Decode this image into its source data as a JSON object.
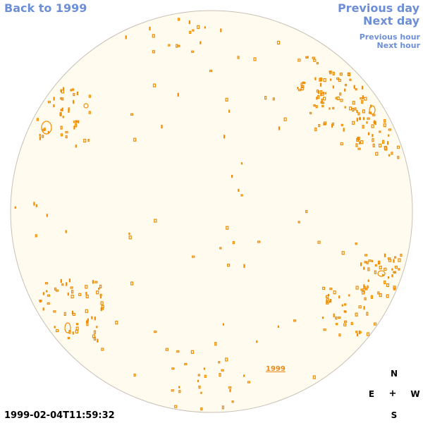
{
  "nav": {
    "back_label": "Back to 1999",
    "prev_day_label": "Previous day",
    "next_day_label": "Next day",
    "prev_hour_label": "Previous hour",
    "next_hour_label": "Next hour"
  },
  "disk": {
    "year_label": "1999"
  },
  "timestamp": "1999-02-04T11:59:32",
  "compass": {
    "n": "N",
    "e": "E",
    "center": "+",
    "w": "W",
    "s": "S"
  },
  "colors": {
    "link": "#6d8fd8",
    "disk_fill": "#fffbef",
    "disk_edge": "#c8c0b4",
    "contour": "#f08c00"
  }
}
